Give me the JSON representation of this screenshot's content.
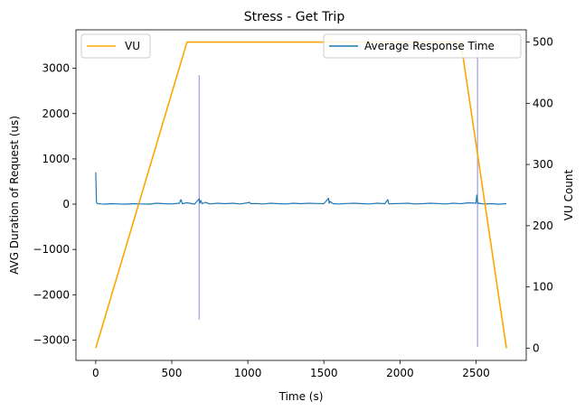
{
  "chart_data": {
    "type": "line",
    "title": "Stress - Get Trip",
    "xlabel": "Time (s)",
    "ylabel_left": "AVG Duration of Request (us)",
    "ylabel_right": "VU Count",
    "xlim": [
      -130,
      2830
    ],
    "ylim_left": [
      -3450,
      3850
    ],
    "ylim_right": [
      -20,
      520
    ],
    "x_ticks": [
      0,
      500,
      1000,
      1500,
      2000,
      2500
    ],
    "y_left_ticks": [
      -3000,
      -2000,
      -1000,
      0,
      1000,
      2000,
      3000
    ],
    "y_right_ticks": [
      0,
      100,
      200,
      300,
      400,
      500
    ],
    "colors": {
      "vu": "#ffa500",
      "response": "#1f77b4",
      "markers": "#9b9bf0"
    },
    "legend": {
      "vu": {
        "label": "VU",
        "placement": "upper-left"
      },
      "response": {
        "label": "Average Response Time",
        "placement": "upper-right"
      }
    },
    "series": [
      {
        "name": "VU",
        "axis": "right",
        "x": [
          0,
          600,
          2400,
          2700
        ],
        "y": [
          0,
          500,
          500,
          0
        ]
      },
      {
        "name": "Average Response Time",
        "axis": "left",
        "x": [
          0,
          5,
          8,
          12,
          20,
          40,
          60,
          100,
          150,
          200,
          250,
          300,
          350,
          400,
          450,
          500,
          550,
          560,
          570,
          600,
          650,
          680,
          685,
          690,
          700,
          720,
          750,
          800,
          850,
          900,
          950,
          1000,
          1010,
          1020,
          1050,
          1100,
          1150,
          1200,
          1250,
          1300,
          1350,
          1400,
          1450,
          1500,
          1530,
          1535,
          1540,
          1560,
          1600,
          1650,
          1700,
          1750,
          1800,
          1850,
          1900,
          1920,
          1925,
          1930,
          1950,
          2000,
          2050,
          2100,
          2150,
          2200,
          2250,
          2300,
          2350,
          2400,
          2450,
          2500,
          2505,
          2510,
          2515,
          2520,
          2550,
          2600,
          2650,
          2700
        ],
        "y": [
          700,
          40,
          20,
          15,
          10,
          5,
          0,
          10,
          5,
          0,
          10,
          5,
          0,
          20,
          10,
          5,
          20,
          100,
          10,
          30,
          0,
          120,
          20,
          80,
          10,
          40,
          5,
          20,
          10,
          20,
          5,
          30,
          40,
          10,
          15,
          5,
          20,
          10,
          5,
          20,
          10,
          20,
          15,
          10,
          130,
          20,
          60,
          10,
          5,
          15,
          20,
          10,
          5,
          20,
          10,
          100,
          20,
          5,
          10,
          15,
          20,
          5,
          10,
          20,
          15,
          5,
          20,
          10,
          30,
          20,
          200,
          40,
          10,
          20,
          5,
          10,
          0,
          10
        ]
      }
    ],
    "markers": [
      {
        "x": 680,
        "y_from": -2550,
        "y_to": 2850
      },
      {
        "x": 2510,
        "y_from": -3150,
        "y_to": 3550
      }
    ]
  }
}
